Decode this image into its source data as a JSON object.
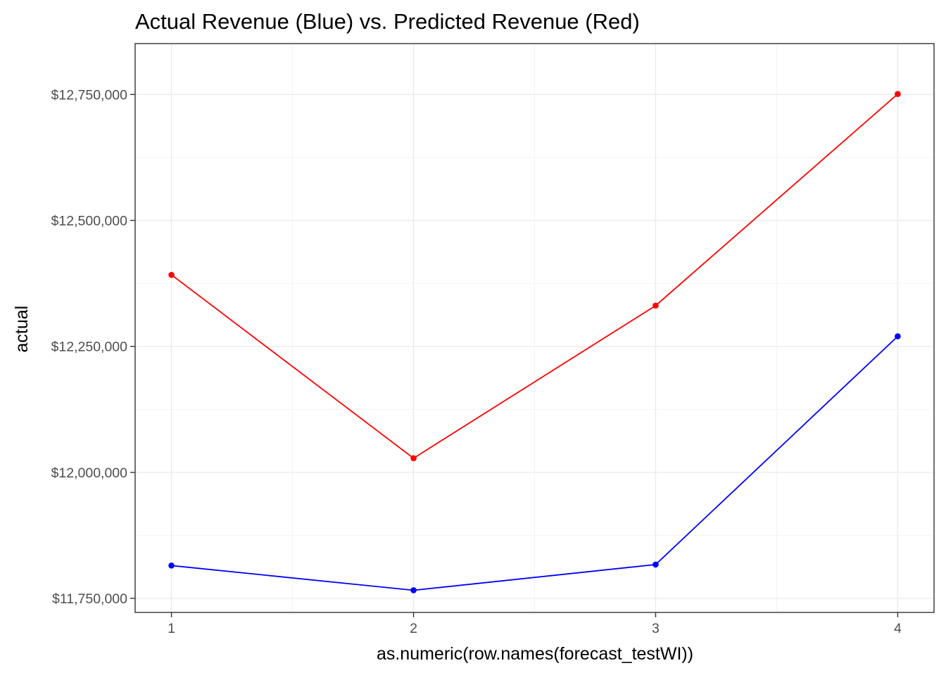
{
  "chart_data": {
    "type": "line",
    "title": "Actual Revenue (Blue) vs. Predicted Revenue (Red)",
    "xlabel": "as.numeric(row.names(forecast_testWI))",
    "ylabel": "actual",
    "x": [
      1,
      2,
      3,
      4
    ],
    "x_ticks": [
      1,
      2,
      3,
      4
    ],
    "x_tick_labels": [
      "1",
      "2",
      "3",
      "4"
    ],
    "y_ticks": [
      11750000,
      12000000,
      12250000,
      12500000,
      12750000
    ],
    "y_tick_labels": [
      "$11,750,000",
      "$12,000,000",
      "$12,250,000",
      "$12,500,000",
      "$12,750,000"
    ],
    "xlim": [
      0.85,
      4.15
    ],
    "ylim": [
      11722000,
      12851000
    ],
    "grid": true,
    "legend": "none",
    "series": [
      {
        "color": "#0000ff",
        "values": [
          11815000,
          11766000,
          11817000,
          12270000
        ]
      },
      {
        "color": "#ff0000",
        "values": [
          12392000,
          12028000,
          12331000,
          12751000
        ]
      }
    ]
  }
}
